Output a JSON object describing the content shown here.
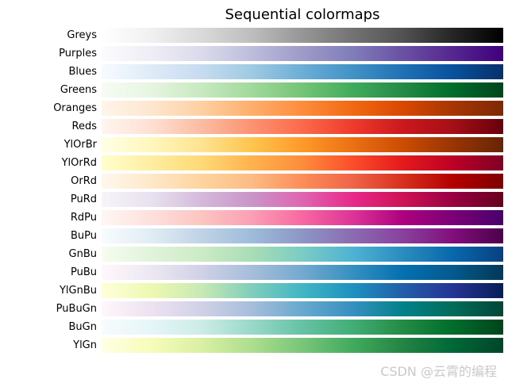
{
  "chart_data": {
    "type": "heatmap",
    "title": "Sequential colormaps",
    "xlabel": "",
    "ylabel": "",
    "grid": false,
    "series": [
      {
        "name": "Greys",
        "colors": [
          "#ffffff",
          "#f0f0f0",
          "#d9d9d9",
          "#bdbdbd",
          "#969696",
          "#737373",
          "#525252",
          "#252525",
          "#000000"
        ]
      },
      {
        "name": "Purples",
        "colors": [
          "#fcfbfd",
          "#efedf5",
          "#dadaeb",
          "#bcbddc",
          "#9e9ac8",
          "#807dba",
          "#6a51a3",
          "#54278f",
          "#3f007d"
        ]
      },
      {
        "name": "Blues",
        "colors": [
          "#f7fbff",
          "#deebf7",
          "#c6dbef",
          "#9ecae1",
          "#6baed6",
          "#4292c6",
          "#2171b5",
          "#08519c",
          "#08306b"
        ]
      },
      {
        "name": "Greens",
        "colors": [
          "#f7fcf5",
          "#e5f5e0",
          "#c7e9c0",
          "#a1d99b",
          "#74c476",
          "#41ab5d",
          "#238b45",
          "#006d2c",
          "#00441b"
        ]
      },
      {
        "name": "Oranges",
        "colors": [
          "#fff5eb",
          "#fee6ce",
          "#fdd0a2",
          "#fdae6b",
          "#fd8d3c",
          "#f16913",
          "#d94801",
          "#a63603",
          "#7f2704"
        ]
      },
      {
        "name": "Reds",
        "colors": [
          "#fff5f0",
          "#fee0d2",
          "#fcbba1",
          "#fc9272",
          "#fb6a4a",
          "#ef3b2c",
          "#cb181d",
          "#a50f15",
          "#67000d"
        ]
      },
      {
        "name": "YlOrBr",
        "colors": [
          "#ffffe5",
          "#fff7bc",
          "#fee391",
          "#fec44f",
          "#fe9929",
          "#ec7014",
          "#cc4c02",
          "#993404",
          "#662506"
        ]
      },
      {
        "name": "YlOrRd",
        "colors": [
          "#ffffcc",
          "#ffeda0",
          "#fed976",
          "#feb24c",
          "#fd8d3c",
          "#fc4e2a",
          "#e31a1c",
          "#bd0026",
          "#800026"
        ]
      },
      {
        "name": "OrRd",
        "colors": [
          "#fff7ec",
          "#fee8c8",
          "#fdd49e",
          "#fdbb84",
          "#fc8d59",
          "#ef6548",
          "#d7301f",
          "#b30000",
          "#7f0000"
        ]
      },
      {
        "name": "PuRd",
        "colors": [
          "#f7f4f9",
          "#e7e1ef",
          "#d4b9da",
          "#c994c7",
          "#df65b0",
          "#e7298a",
          "#ce1256",
          "#980043",
          "#67001f"
        ]
      },
      {
        "name": "RdPu",
        "colors": [
          "#fff7f3",
          "#fde0dd",
          "#fcc5c0",
          "#fa9fb5",
          "#f768a1",
          "#dd3497",
          "#ae017e",
          "#7a0177",
          "#49006a"
        ]
      },
      {
        "name": "BuPu",
        "colors": [
          "#f7fcfd",
          "#e0ecf4",
          "#bfd3e6",
          "#9ebcda",
          "#8c96c6",
          "#8c6bb1",
          "#88419d",
          "#810f7c",
          "#4d004b"
        ]
      },
      {
        "name": "GnBu",
        "colors": [
          "#f7fcf0",
          "#e0f3db",
          "#ccebc5",
          "#a8ddb5",
          "#7bccc4",
          "#4eb3d3",
          "#2b8cbe",
          "#0868ac",
          "#084081"
        ]
      },
      {
        "name": "PuBu",
        "colors": [
          "#fff7fb",
          "#ece7f2",
          "#d0d1e6",
          "#a6bddb",
          "#74a9cf",
          "#3690c0",
          "#0570b0",
          "#045a8d",
          "#023858"
        ]
      },
      {
        "name": "YlGnBu",
        "colors": [
          "#ffffd9",
          "#edf8b1",
          "#c7e9b4",
          "#7fcdbb",
          "#41b6c4",
          "#1d91c0",
          "#225ea8",
          "#253494",
          "#081d58"
        ]
      },
      {
        "name": "PuBuGn",
        "colors": [
          "#fff7fb",
          "#ece2f0",
          "#d0d1e6",
          "#a6bddb",
          "#67a9cf",
          "#3690c0",
          "#02818a",
          "#016c59",
          "#014636"
        ]
      },
      {
        "name": "BuGn",
        "colors": [
          "#f7fcfd",
          "#e5f5f9",
          "#ccece6",
          "#99d8c9",
          "#66c2a4",
          "#41ae76",
          "#238b45",
          "#006d2c",
          "#00441b"
        ]
      },
      {
        "name": "YlGn",
        "colors": [
          "#ffffe5",
          "#f7fcb9",
          "#d9f0a3",
          "#addd8e",
          "#78c679",
          "#41ab5d",
          "#238443",
          "#006837",
          "#004529"
        ]
      }
    ]
  },
  "watermark": "CSDN @云霄的编程"
}
